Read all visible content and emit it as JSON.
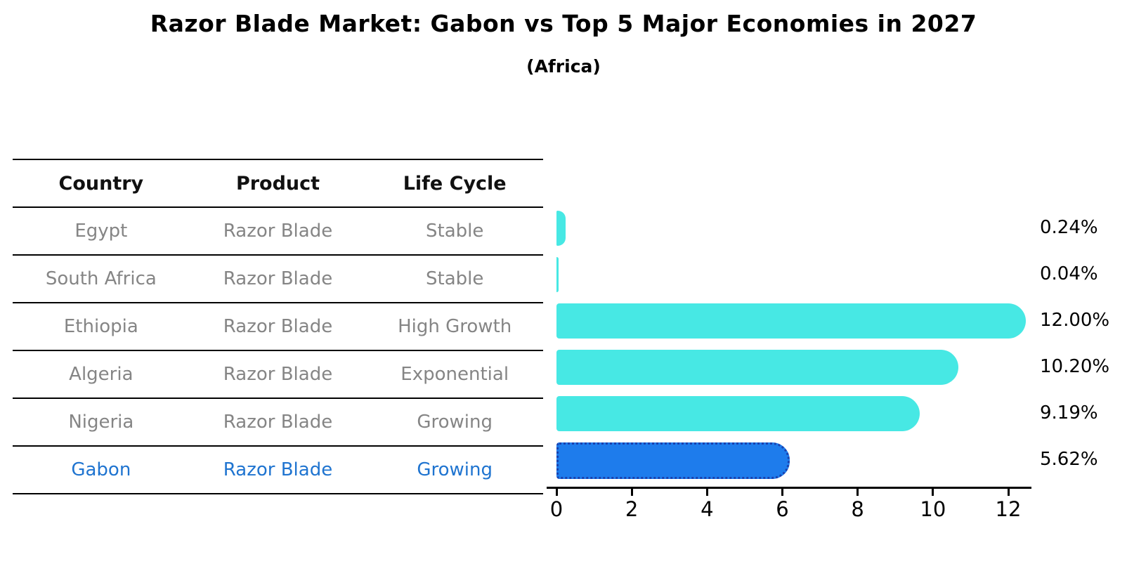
{
  "title": "Razor Blade Market: Gabon vs Top 5 Major Economies in 2027",
  "subtitle": "(Africa)",
  "colors": {
    "bar_default": "#47E8E4",
    "bar_highlight": "#1E7CEC",
    "bar_highlight_border": "#1A41AE",
    "highlight_text": "#1F74D0",
    "row_text": "#858585",
    "header_text": "#111111",
    "axis": "#000000"
  },
  "table": {
    "headers": [
      "Country",
      "Product",
      "Life Cycle"
    ],
    "rows": [
      {
        "country": "Egypt",
        "product": "Razor Blade",
        "life_cycle": "Stable"
      },
      {
        "country": "South Africa",
        "product": "Razor Blade",
        "life_cycle": "Stable"
      },
      {
        "country": "Ethiopia",
        "product": "Razor Blade",
        "life_cycle": "High Growth"
      },
      {
        "country": "Algeria",
        "product": "Razor Blade",
        "life_cycle": "Exponential"
      },
      {
        "country": "Nigeria",
        "product": "Razor Blade",
        "life_cycle": "Growing"
      },
      {
        "country": "Gabon",
        "product": "Razor Blade",
        "life_cycle": "Growing"
      }
    ]
  },
  "chart_data": {
    "type": "bar",
    "orientation": "horizontal",
    "title": "Razor Blade Market: Gabon vs Top 5 Major Economies in 2027",
    "subtitle": "(Africa)",
    "categories": [
      "Egypt",
      "South Africa",
      "Ethiopia",
      "Algeria",
      "Nigeria",
      "Gabon"
    ],
    "values": [
      0.24,
      0.04,
      12.0,
      10.2,
      9.19,
      5.62
    ],
    "value_labels": [
      "0.24%",
      "0.04%",
      "12.00%",
      "10.20%",
      "9.19%",
      "5.62%"
    ],
    "highlight_category": "Gabon",
    "highlight_index": 5,
    "xlabel": "",
    "ylabel": "",
    "xlim": [
      0,
      12.6
    ],
    "xticks": [
      0,
      2,
      4,
      6,
      8,
      10,
      12
    ],
    "grid": false,
    "legend": false
  }
}
